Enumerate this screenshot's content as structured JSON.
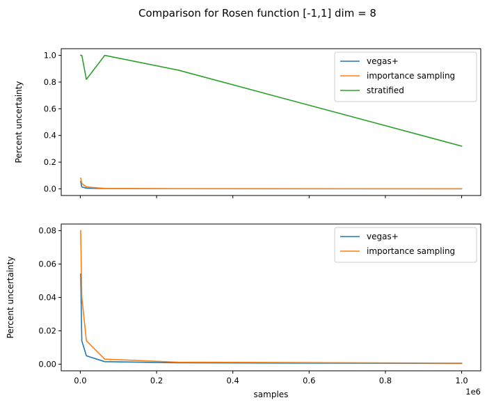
{
  "figure": {
    "title": "Comparison for Rosen function [-1,1] dim = 8",
    "x_offset_label": "1e6"
  },
  "colors": {
    "vegas+": "#1f77b4",
    "importance sampling": "#ff7f0e",
    "stratified": "#2ca02c"
  },
  "chart_data": [
    {
      "type": "line",
      "title": "",
      "xlabel": "",
      "ylabel": "Percent uncertainty",
      "xlim": [
        -0.05,
        1.05
      ],
      "ylim": [
        -0.05,
        1.05
      ],
      "xticks": [
        0.0,
        0.2,
        0.4,
        0.6,
        0.8,
        1.0
      ],
      "xtick_labels_visible": false,
      "yticks": [
        0.0,
        0.2,
        0.4,
        0.6,
        0.8,
        1.0
      ],
      "ytick_labels": [
        "0.0",
        "0.2",
        "0.4",
        "0.6",
        "0.8",
        "1.0"
      ],
      "legend": "top-right",
      "grid": false,
      "series": [
        {
          "name": "vegas+",
          "x": [
            0.001,
            0.004,
            0.016,
            0.064,
            0.256,
            1.0
          ],
          "y": [
            0.054,
            0.014,
            0.005,
            0.0015,
            0.0008,
            0.0004
          ]
        },
        {
          "name": "importance sampling",
          "x": [
            0.001,
            0.004,
            0.016,
            0.064,
            0.256,
            1.0
          ],
          "y": [
            0.08,
            0.04,
            0.014,
            0.003,
            0.0012,
            0.0006
          ]
        },
        {
          "name": "stratified",
          "x": [
            0.001,
            0.004,
            0.016,
            0.064,
            0.256,
            1.0
          ],
          "y": [
            1.0,
            1.0,
            0.82,
            1.0,
            0.89,
            0.32
          ]
        }
      ]
    },
    {
      "type": "line",
      "title": "",
      "xlabel": "samples",
      "ylabel": "Percent uncertainty",
      "xlim": [
        -0.05,
        1.05
      ],
      "ylim": [
        -0.004,
        0.084
      ],
      "xticks": [
        0.0,
        0.2,
        0.4,
        0.6,
        0.8,
        1.0
      ],
      "xtick_labels_visible": true,
      "xtick_labels": [
        "0.0",
        "0.2",
        "0.4",
        "0.6",
        "0.8",
        "1.0"
      ],
      "yticks": [
        0.0,
        0.02,
        0.04,
        0.06,
        0.08
      ],
      "ytick_labels": [
        "0.00",
        "0.02",
        "0.04",
        "0.06",
        "0.08"
      ],
      "legend": "top-right",
      "grid": false,
      "series": [
        {
          "name": "vegas+",
          "x": [
            0.001,
            0.004,
            0.016,
            0.064,
            0.256,
            1.0
          ],
          "y": [
            0.054,
            0.014,
            0.005,
            0.0015,
            0.0008,
            0.0004
          ]
        },
        {
          "name": "importance sampling",
          "x": [
            0.001,
            0.004,
            0.016,
            0.064,
            0.256,
            1.0
          ],
          "y": [
            0.08,
            0.04,
            0.014,
            0.003,
            0.0012,
            0.0006
          ]
        }
      ]
    }
  ]
}
